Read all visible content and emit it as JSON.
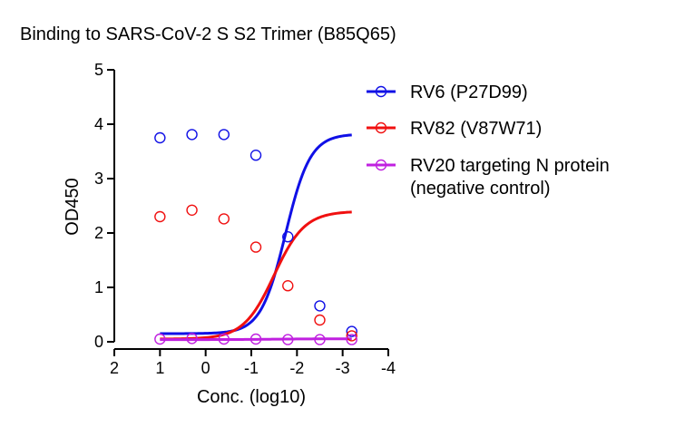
{
  "chart_data": {
    "type": "scatter",
    "title": "Binding to SARS-CoV-2 S S2 Trimer (B85Q65)",
    "xlabel": "Conc. (log10)",
    "ylabel": "OD450",
    "xlim": [
      2,
      -4
    ],
    "ylim": [
      0,
      5
    ],
    "x_reversed": true,
    "x_ticks": [
      2,
      1,
      0,
      -1,
      -2,
      -3,
      -4
    ],
    "x_tick_labels": [
      "2",
      "1",
      "0",
      "-1",
      "-2",
      "-3",
      "-4"
    ],
    "y_ticks": [
      0,
      1,
      2,
      3,
      4,
      5
    ],
    "y_tick_labels": [
      "0",
      "1",
      "2",
      "3",
      "4",
      "5"
    ],
    "legend_position": "right",
    "grid": false,
    "series": [
      {
        "name": "RV6 (P27D99)",
        "color": "#1010e6",
        "points": [
          {
            "x": 1.0,
            "y": 3.75
          },
          {
            "x": 0.3,
            "y": 3.81
          },
          {
            "x": -0.4,
            "y": 3.81
          },
          {
            "x": -1.1,
            "y": 3.43
          },
          {
            "x": -1.8,
            "y": 1.93
          },
          {
            "x": -2.5,
            "y": 0.66
          },
          {
            "x": -3.2,
            "y": 0.19
          }
        ],
        "fit": {
          "bottom": 0.15,
          "top": 3.82,
          "logEC50": -1.75,
          "hill": -1.6
        }
      },
      {
        "name": "RV82 (V87W71)",
        "color": "#f01010",
        "points": [
          {
            "x": 1.0,
            "y": 2.3
          },
          {
            "x": 0.3,
            "y": 2.42
          },
          {
            "x": -0.4,
            "y": 2.26
          },
          {
            "x": -1.1,
            "y": 1.74
          },
          {
            "x": -1.8,
            "y": 1.03
          },
          {
            "x": -2.5,
            "y": 0.4
          },
          {
            "x": -3.2,
            "y": 0.11
          }
        ],
        "fit": {
          "bottom": 0.05,
          "top": 2.4,
          "logEC50": -1.5,
          "hill": -1.3
        }
      },
      {
        "name": "RV20 targeting N protein",
        "name_line2": "(negative control)",
        "color": "#c020e0",
        "points": [
          {
            "x": 1.0,
            "y": 0.05
          },
          {
            "x": 0.3,
            "y": 0.06
          },
          {
            "x": -0.4,
            "y": 0.05
          },
          {
            "x": -1.1,
            "y": 0.05
          },
          {
            "x": -1.8,
            "y": 0.04
          },
          {
            "x": -2.5,
            "y": 0.04
          },
          {
            "x": -3.2,
            "y": 0.04
          }
        ],
        "fit": {
          "bottom": 0.04,
          "top": 0.055,
          "logEC50": -1.5,
          "hill": -1.0
        }
      }
    ]
  }
}
